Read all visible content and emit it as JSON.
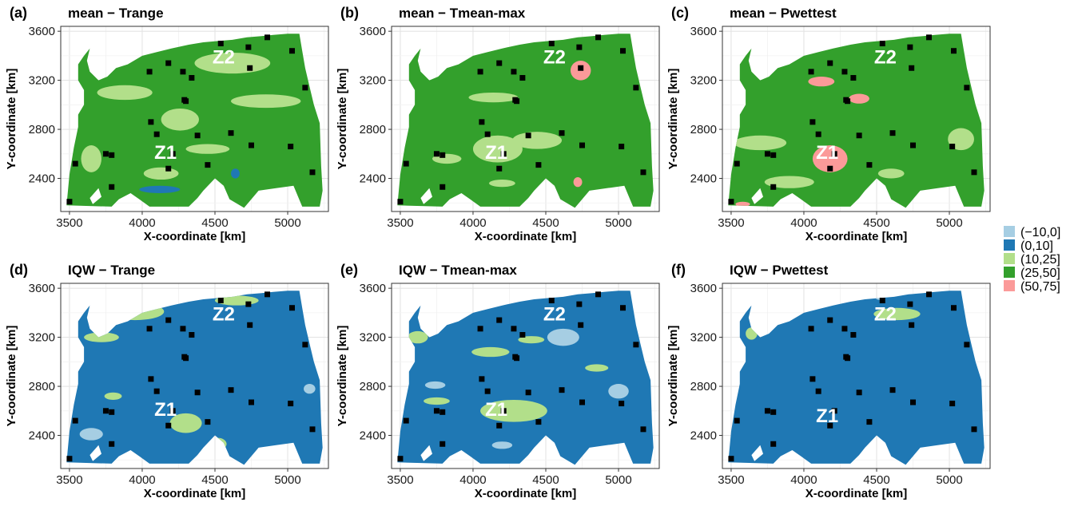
{
  "legend": {
    "items": [
      {
        "label": "(−10,0]",
        "color": "#a6cee3"
      },
      {
        "label": "(0,10]",
        "color": "#1f78b4"
      },
      {
        "label": "(10,25]",
        "color": "#b2df8a"
      },
      {
        "label": "(25,50]",
        "color": "#33a02c"
      },
      {
        "label": "(50,75]",
        "color": "#fb9a99"
      }
    ]
  },
  "chart_data": [
    {
      "type": "heatmap",
      "tag": "(a)",
      "title": "mean − Trange",
      "xlabel": "X-coordinate [km]",
      "ylabel": "Y-coordinate [km]",
      "xlim": [
        3440,
        5280
      ],
      "ylim": [
        2130,
        3640
      ],
      "xticks": [
        3500,
        4000,
        4500,
        5000
      ],
      "yticks": [
        2400,
        2800,
        3200,
        3600
      ],
      "base_class": "(25,50]",
      "patches": [
        {
          "class": "(10,25]",
          "x": 4620,
          "y": 3340,
          "rx": 260,
          "ry": 85
        },
        {
          "class": "(10,25]",
          "x": 3880,
          "y": 3100,
          "rx": 190,
          "ry": 60
        },
        {
          "class": "(10,25]",
          "x": 4850,
          "y": 3030,
          "rx": 240,
          "ry": 55
        },
        {
          "class": "(10,25]",
          "x": 4260,
          "y": 2880,
          "rx": 130,
          "ry": 90
        },
        {
          "class": "(10,25]",
          "x": 3650,
          "y": 2560,
          "rx": 70,
          "ry": 110
        },
        {
          "class": "(10,25]",
          "x": 4450,
          "y": 2640,
          "rx": 150,
          "ry": 40
        },
        {
          "class": "(10,25]",
          "x": 4130,
          "y": 2440,
          "rx": 120,
          "ry": 50
        },
        {
          "class": "(0,10]",
          "x": 4120,
          "y": 2310,
          "rx": 140,
          "ry": 30
        },
        {
          "class": "(0,10]",
          "x": 4640,
          "y": 2440,
          "rx": 30,
          "ry": 40
        }
      ],
      "stations": [
        [
          3500,
          2210
        ],
        [
          3540,
          2520
        ],
        [
          3750,
          2600
        ],
        [
          3790,
          2590
        ],
        [
          3790,
          2330
        ],
        [
          4050,
          3270
        ],
        [
          4060,
          2860
        ],
        [
          4100,
          2760
        ],
        [
          4180,
          3340
        ],
        [
          4180,
          2480
        ],
        [
          4210,
          2600
        ],
        [
          4280,
          3270
        ],
        [
          4290,
          3040
        ],
        [
          4300,
          3030
        ],
        [
          4340,
          3220
        ],
        [
          4380,
          2750
        ],
        [
          4450,
          2510
        ],
        [
          4540,
          3500
        ],
        [
          4610,
          2770
        ],
        [
          4730,
          3470
        ],
        [
          4740,
          3300
        ],
        [
          4750,
          2670
        ],
        [
          4860,
          3550
        ],
        [
          5020,
          2660
        ],
        [
          5030,
          3440
        ],
        [
          5120,
          3140
        ],
        [
          5170,
          2450
        ]
      ],
      "zone_labels": [
        {
          "text": "Z2",
          "x": 4560,
          "y": 3380
        },
        {
          "text": "Z1",
          "x": 4160,
          "y": 2600
        }
      ]
    },
    {
      "type": "heatmap",
      "tag": "(b)",
      "title": "mean − Tmean-max",
      "xlabel": "X-coordinate [km]",
      "ylabel": "Y-coordinate [km]",
      "xlim": [
        3440,
        5280
      ],
      "ylim": [
        2130,
        3640
      ],
      "xticks": [
        3500,
        4000,
        4500,
        5000
      ],
      "yticks": [
        2400,
        2800,
        3200,
        3600
      ],
      "base_class": "(25,50]",
      "patches": [
        {
          "class": "(50,75]",
          "x": 4740,
          "y": 3280,
          "rx": 70,
          "ry": 80
        },
        {
          "class": "(50,75]",
          "x": 4720,
          "y": 2370,
          "rx": 30,
          "ry": 40
        },
        {
          "class": "(10,25]",
          "x": 4170,
          "y": 2640,
          "rx": 170,
          "ry": 110
        },
        {
          "class": "(10,25]",
          "x": 4440,
          "y": 2710,
          "rx": 170,
          "ry": 70
        },
        {
          "class": "(10,25]",
          "x": 3820,
          "y": 2560,
          "rx": 100,
          "ry": 40
        },
        {
          "class": "(10,25]",
          "x": 4140,
          "y": 3060,
          "rx": 170,
          "ry": 40
        },
        {
          "class": "(10,25]",
          "x": 4200,
          "y": 2360,
          "rx": 90,
          "ry": 30
        }
      ],
      "stations": [
        [
          3500,
          2210
        ],
        [
          3540,
          2520
        ],
        [
          3750,
          2600
        ],
        [
          3790,
          2590
        ],
        [
          3790,
          2330
        ],
        [
          4050,
          3270
        ],
        [
          4060,
          2860
        ],
        [
          4100,
          2760
        ],
        [
          4180,
          3340
        ],
        [
          4180,
          2480
        ],
        [
          4210,
          2600
        ],
        [
          4280,
          3270
        ],
        [
          4290,
          3040
        ],
        [
          4300,
          3030
        ],
        [
          4340,
          3220
        ],
        [
          4380,
          2750
        ],
        [
          4450,
          2510
        ],
        [
          4540,
          3500
        ],
        [
          4610,
          2770
        ],
        [
          4730,
          3470
        ],
        [
          4740,
          3300
        ],
        [
          4750,
          2670
        ],
        [
          4860,
          3550
        ],
        [
          5020,
          2660
        ],
        [
          5030,
          3440
        ],
        [
          5120,
          3140
        ],
        [
          5170,
          2450
        ]
      ],
      "zone_labels": [
        {
          "text": "Z2",
          "x": 4560,
          "y": 3380
        },
        {
          "text": "Z1",
          "x": 4160,
          "y": 2600
        }
      ]
    },
    {
      "type": "heatmap",
      "tag": "(c)",
      "title": "mean − Pwettest",
      "xlabel": "X-coordinate [km]",
      "ylabel": "Y-coordinate [km]",
      "xlim": [
        3440,
        5280
      ],
      "ylim": [
        2130,
        3640
      ],
      "xticks": [
        3500,
        4000,
        4500,
        5000
      ],
      "yticks": [
        2400,
        2800,
        3200,
        3600
      ],
      "base_class": "(25,50]",
      "patches": [
        {
          "class": "(50,75]",
          "x": 4180,
          "y": 2560,
          "rx": 120,
          "ry": 110
        },
        {
          "class": "(50,75]",
          "x": 4120,
          "y": 3190,
          "rx": 90,
          "ry": 40
        },
        {
          "class": "(50,75]",
          "x": 4380,
          "y": 3050,
          "rx": 70,
          "ry": 40
        },
        {
          "class": "(50,75]",
          "x": 4540,
          "y": 3560,
          "rx": 30,
          "ry": 60
        },
        {
          "class": "(50,75]",
          "x": 3580,
          "y": 2190,
          "rx": 50,
          "ry": 20
        },
        {
          "class": "(10,25]",
          "x": 3700,
          "y": 2690,
          "rx": 180,
          "ry": 60
        },
        {
          "class": "(10,25]",
          "x": 5080,
          "y": 2720,
          "rx": 90,
          "ry": 90
        },
        {
          "class": "(10,25]",
          "x": 3900,
          "y": 2370,
          "rx": 170,
          "ry": 50
        },
        {
          "class": "(10,25]",
          "x": 4600,
          "y": 2440,
          "rx": 90,
          "ry": 40
        }
      ],
      "stations": [
        [
          3500,
          2210
        ],
        [
          3540,
          2520
        ],
        [
          3750,
          2600
        ],
        [
          3790,
          2590
        ],
        [
          3790,
          2330
        ],
        [
          4050,
          3270
        ],
        [
          4060,
          2860
        ],
        [
          4100,
          2760
        ],
        [
          4180,
          3340
        ],
        [
          4180,
          2480
        ],
        [
          4210,
          2600
        ],
        [
          4280,
          3270
        ],
        [
          4290,
          3040
        ],
        [
          4300,
          3030
        ],
        [
          4340,
          3220
        ],
        [
          4380,
          2750
        ],
        [
          4450,
          2510
        ],
        [
          4540,
          3500
        ],
        [
          4610,
          2770
        ],
        [
          4730,
          3470
        ],
        [
          4740,
          3300
        ],
        [
          4750,
          2670
        ],
        [
          4860,
          3550
        ],
        [
          5020,
          2660
        ],
        [
          5030,
          3440
        ],
        [
          5120,
          3140
        ],
        [
          5170,
          2450
        ]
      ],
      "zone_labels": [
        {
          "text": "Z2",
          "x": 4560,
          "y": 3380
        },
        {
          "text": "Z1",
          "x": 4160,
          "y": 2600
        }
      ]
    },
    {
      "type": "heatmap",
      "tag": "(d)",
      "title": "IQW − Trange",
      "xlabel": "X-coordinate [km]",
      "ylabel": "Y-coordinate [km]",
      "xlim": [
        3440,
        5280
      ],
      "ylim": [
        2130,
        3640
      ],
      "xticks": [
        3500,
        4000,
        4500,
        5000
      ],
      "yticks": [
        2400,
        2800,
        3200,
        3600
      ],
      "base_class": "(0,10]",
      "patches": [
        {
          "class": "(10,25]",
          "x": 3950,
          "y": 3410,
          "rx": 200,
          "ry": 70
        },
        {
          "class": "(10,25]",
          "x": 3720,
          "y": 3200,
          "rx": 120,
          "ry": 40
        },
        {
          "class": "(10,25]",
          "x": 4650,
          "y": 3500,
          "rx": 150,
          "ry": 40
        },
        {
          "class": "(10,25]",
          "x": 4300,
          "y": 2500,
          "rx": 110,
          "ry": 80
        },
        {
          "class": "(10,25]",
          "x": 4520,
          "y": 2330,
          "rx": 60,
          "ry": 50
        },
        {
          "class": "(10,25]",
          "x": 3800,
          "y": 2720,
          "rx": 60,
          "ry": 30
        },
        {
          "class": "(−10,0]",
          "x": 3650,
          "y": 2410,
          "rx": 80,
          "ry": 50
        },
        {
          "class": "(−10,0]",
          "x": 5150,
          "y": 2780,
          "rx": 40,
          "ry": 40
        }
      ],
      "stations": [
        [
          3500,
          2210
        ],
        [
          3540,
          2520
        ],
        [
          3750,
          2600
        ],
        [
          3790,
          2590
        ],
        [
          3790,
          2330
        ],
        [
          4050,
          3270
        ],
        [
          4060,
          2860
        ],
        [
          4100,
          2760
        ],
        [
          4180,
          3340
        ],
        [
          4180,
          2480
        ],
        [
          4210,
          2600
        ],
        [
          4280,
          3270
        ],
        [
          4290,
          3040
        ],
        [
          4300,
          3030
        ],
        [
          4340,
          3220
        ],
        [
          4380,
          2750
        ],
        [
          4450,
          2510
        ],
        [
          4540,
          3500
        ],
        [
          4610,
          2770
        ],
        [
          4730,
          3470
        ],
        [
          4740,
          3300
        ],
        [
          4750,
          2670
        ],
        [
          4860,
          3550
        ],
        [
          5020,
          2660
        ],
        [
          5030,
          3440
        ],
        [
          5120,
          3140
        ],
        [
          5170,
          2450
        ]
      ],
      "zone_labels": [
        {
          "text": "Z2",
          "x": 4560,
          "y": 3380
        },
        {
          "text": "Z1",
          "x": 4160,
          "y": 2600
        }
      ]
    },
    {
      "type": "heatmap",
      "tag": "(e)",
      "title": "IQW − Tmean-max",
      "xlabel": "X-coordinate [km]",
      "ylabel": "Y-coordinate [km]",
      "xlim": [
        3440,
        5280
      ],
      "ylim": [
        2130,
        3640
      ],
      "xticks": [
        3500,
        4000,
        4500,
        5000
      ],
      "yticks": [
        2400,
        2800,
        3200,
        3600
      ],
      "base_class": "(0,10]",
      "patches": [
        {
          "class": "(10,25]",
          "x": 4280,
          "y": 2600,
          "rx": 230,
          "ry": 90
        },
        {
          "class": "(10,25]",
          "x": 3620,
          "y": 3200,
          "rx": 70,
          "ry": 50
        },
        {
          "class": "(10,25]",
          "x": 4120,
          "y": 3080,
          "rx": 130,
          "ry": 40
        },
        {
          "class": "(10,25]",
          "x": 4400,
          "y": 3180,
          "rx": 90,
          "ry": 30
        },
        {
          "class": "(10,25]",
          "x": 3750,
          "y": 2680,
          "rx": 90,
          "ry": 30
        },
        {
          "class": "(10,25]",
          "x": 4850,
          "y": 2950,
          "rx": 80,
          "ry": 30
        },
        {
          "class": "(−10,0]",
          "x": 4620,
          "y": 3200,
          "rx": 110,
          "ry": 70
        },
        {
          "class": "(−10,0]",
          "x": 5000,
          "y": 2760,
          "rx": 70,
          "ry": 60
        },
        {
          "class": "(−10,0]",
          "x": 3740,
          "y": 2810,
          "rx": 70,
          "ry": 30
        },
        {
          "class": "(−10,0]",
          "x": 4200,
          "y": 2320,
          "rx": 70,
          "ry": 30
        }
      ],
      "stations": [
        [
          3500,
          2210
        ],
        [
          3540,
          2520
        ],
        [
          3750,
          2600
        ],
        [
          3790,
          2590
        ],
        [
          3790,
          2330
        ],
        [
          4050,
          3270
        ],
        [
          4060,
          2860
        ],
        [
          4100,
          2760
        ],
        [
          4180,
          3340
        ],
        [
          4180,
          2480
        ],
        [
          4210,
          2600
        ],
        [
          4280,
          3270
        ],
        [
          4290,
          3040
        ],
        [
          4300,
          3030
        ],
        [
          4340,
          3220
        ],
        [
          4380,
          2750
        ],
        [
          4450,
          2510
        ],
        [
          4540,
          3500
        ],
        [
          4610,
          2770
        ],
        [
          4730,
          3470
        ],
        [
          4740,
          3300
        ],
        [
          4750,
          2670
        ],
        [
          4860,
          3550
        ],
        [
          5020,
          2660
        ],
        [
          5030,
          3440
        ],
        [
          5120,
          3140
        ],
        [
          5170,
          2450
        ]
      ],
      "zone_labels": [
        {
          "text": "Z2",
          "x": 4560,
          "y": 3380
        },
        {
          "text": "Z1",
          "x": 4160,
          "y": 2600
        }
      ]
    },
    {
      "type": "heatmap",
      "tag": "(f)",
      "title": "IQW − Pwettest",
      "xlabel": "X-coordinate [km]",
      "ylabel": "Y-coordinate [km]",
      "xlim": [
        3440,
        5280
      ],
      "ylim": [
        2130,
        3640
      ],
      "xticks": [
        3500,
        4000,
        4500,
        5000
      ],
      "yticks": [
        2400,
        2800,
        3200,
        3600
      ],
      "base_class": "(0,10]",
      "patches": [
        {
          "class": "(10,25]",
          "x": 4640,
          "y": 3390,
          "rx": 160,
          "ry": 50
        },
        {
          "class": "(10,25]",
          "x": 3640,
          "y": 3230,
          "rx": 40,
          "ry": 50
        },
        {
          "class": "(−10,0]",
          "x": 4520,
          "y": 3530,
          "rx": 30,
          "ry": 25
        }
      ],
      "stations": [
        [
          3500,
          2210
        ],
        [
          3540,
          2520
        ],
        [
          3750,
          2600
        ],
        [
          3790,
          2590
        ],
        [
          3790,
          2330
        ],
        [
          4050,
          3270
        ],
        [
          4060,
          2860
        ],
        [
          4100,
          2760
        ],
        [
          4180,
          3340
        ],
        [
          4180,
          2480
        ],
        [
          4210,
          2600
        ],
        [
          4280,
          3270
        ],
        [
          4290,
          3040
        ],
        [
          4300,
          3030
        ],
        [
          4340,
          3220
        ],
        [
          4380,
          2750
        ],
        [
          4450,
          2510
        ],
        [
          4540,
          3500
        ],
        [
          4610,
          2770
        ],
        [
          4730,
          3470
        ],
        [
          4740,
          3300
        ],
        [
          4750,
          2670
        ],
        [
          4860,
          3550
        ],
        [
          5020,
          2660
        ],
        [
          5030,
          3440
        ],
        [
          5120,
          3140
        ],
        [
          5170,
          2450
        ]
      ],
      "zone_labels": [
        {
          "text": "Z2",
          "x": 4560,
          "y": 3380
        },
        {
          "text": "Z1",
          "x": 4160,
          "y": 2550
        }
      ]
    }
  ]
}
